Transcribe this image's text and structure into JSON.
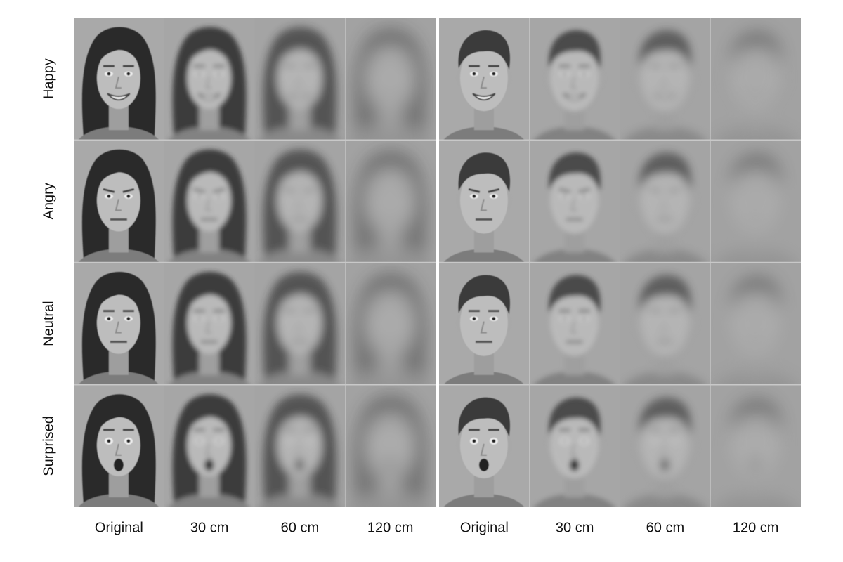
{
  "rows": [
    "Happy",
    "Angry",
    "Neutral",
    "Surprised"
  ],
  "panels": [
    {
      "columns": [
        "Original",
        "30 cm",
        "60 cm",
        "120 cm"
      ]
    },
    {
      "columns": [
        "Original",
        "30 cm",
        "60 cm",
        "120 cm"
      ]
    }
  ]
}
